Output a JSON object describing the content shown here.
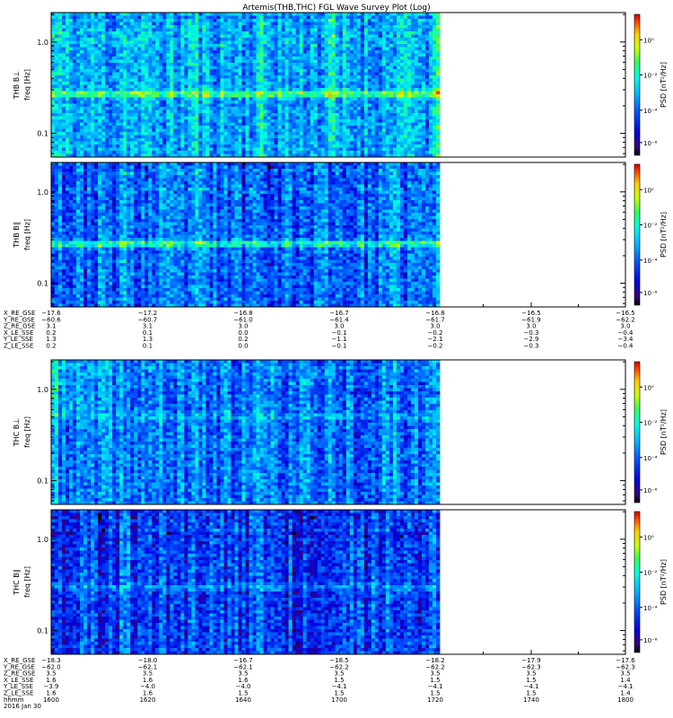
{
  "title": "Artemis(THB,THC) FGL Wave Survey Plot (Log)",
  "chart_data": {
    "type": "heatmap",
    "title": "Artemis(THB,THC) FGL Wave Survey Plot (Log)",
    "y_scale": "log",
    "colorbar_scale": "log",
    "freq_ticks": [
      "1.0",
      "0.1"
    ],
    "panels": [
      {
        "probe": "THB",
        "comp": "B⊥",
        "ylabel_top": "THB B⊥",
        "ylabel_bottom": "freq [Hz]",
        "colorbar_label": "PSD [nT²/Hz]",
        "colorbar_ticks": [
          "10⁰",
          "10⁻²",
          "10⁻⁴",
          "10⁻⁶"
        ],
        "seed": 11,
        "base": 0.42,
        "band_freq": 0.27,
        "band_strength": 0.28
      },
      {
        "probe": "THB",
        "comp": "B∥",
        "ylabel_top": "THB B∥",
        "ylabel_bottom": "freq [Hz]",
        "colorbar_label": "PSD [nT²/Hz]",
        "colorbar_ticks": [
          "10⁰",
          "10⁻²",
          "10⁻⁴",
          "10⁻⁶"
        ],
        "seed": 23,
        "base": 0.32,
        "band_freq": 0.27,
        "band_strength": 0.3
      },
      {
        "probe": "THC",
        "comp": "B⊥",
        "ylabel_top": "THC B⊥",
        "ylabel_bottom": "freq [Hz]",
        "colorbar_label": "PSD [nT²/Hz]",
        "colorbar_ticks": [
          "10⁰",
          "10⁻²",
          "10⁻⁴",
          "10⁻⁶"
        ],
        "seed": 37,
        "base": 0.34,
        "band_freq": 0.5,
        "band_strength": 0.1
      },
      {
        "probe": "THC",
        "comp": "B∥",
        "ylabel_top": "THC B∥",
        "ylabel_bottom": "freq [Hz]",
        "colorbar_label": "PSD [nT²/Hz]",
        "colorbar_ticks": [
          "10⁰",
          "10⁻²",
          "10⁻⁴",
          "10⁻⁶"
        ],
        "seed": 51,
        "base": 0.26,
        "band_freq": 0.3,
        "band_strength": 0.12
      }
    ],
    "thb_ephemeris": {
      "labels": [
        "X_RE_GSE",
        "Y_RE_GSE",
        "Z_RE_GSE",
        "X_LE_SSE",
        "Y_LE_SSE",
        "Z_LE_SSE"
      ],
      "columns": [
        [
          "−17.6",
          "−60.6",
          "3.1",
          "0.2",
          "1.3",
          "0.2"
        ],
        [
          "−17.2",
          "−60.7",
          "3.1",
          "0.1",
          "1.3",
          "0.1"
        ],
        [
          "−16.8",
          "−61.0",
          "3.0",
          "0.0",
          "0.2",
          "0.0"
        ],
        [
          "−16.7",
          "−61.4",
          "3.0",
          "−0.1",
          "−1.1",
          "−0.1"
        ],
        [
          "−16.8",
          "−61.7",
          "3.0",
          "−0.2",
          "−2.1",
          "−0.2"
        ],
        [
          "−16.5",
          "−61.9",
          "3.0",
          "−0.3",
          "−2.9",
          "−0.3"
        ],
        [
          "−16.5",
          "−62.2",
          "3.0",
          "−0.4",
          "−3.4",
          "−0.4"
        ]
      ]
    },
    "thc_ephemeris": {
      "labels": [
        "X_RE_GSE",
        "Y_RE_GSE",
        "Z_RE_GSE",
        "X_LE_SSE",
        "Y_LE_SSE",
        "Z_LE_SSE",
        "hhmm",
        "2016 Jan 30"
      ],
      "columns": [
        [
          "−18.3",
          "−62.0",
          "3.5",
          "1.6",
          "−3.9",
          "1.6",
          "1600"
        ],
        [
          "−18.0",
          "−62.1",
          "3.5",
          "1.6",
          "−4.0",
          "1.6",
          "1620"
        ],
        [
          "−16.7",
          "−62.1",
          "3.5",
          "1.6",
          "−4.0",
          "1.5",
          "1640"
        ],
        [
          "−18.5",
          "−62.2",
          "3.5",
          "1.5",
          "−4.1",
          "1.5",
          "1700"
        ],
        [
          "−18.2",
          "−62.2",
          "3.5",
          "1.5",
          "−4.1",
          "1.5",
          "1720"
        ],
        [
          "−17.9",
          "−62.3",
          "3.5",
          "1.5",
          "−4.1",
          "1.5",
          "1740"
        ],
        [
          "−17.6",
          "−62.3",
          "3.5",
          "1.4",
          "−4.1",
          "1.4",
          "1800"
        ]
      ]
    }
  }
}
